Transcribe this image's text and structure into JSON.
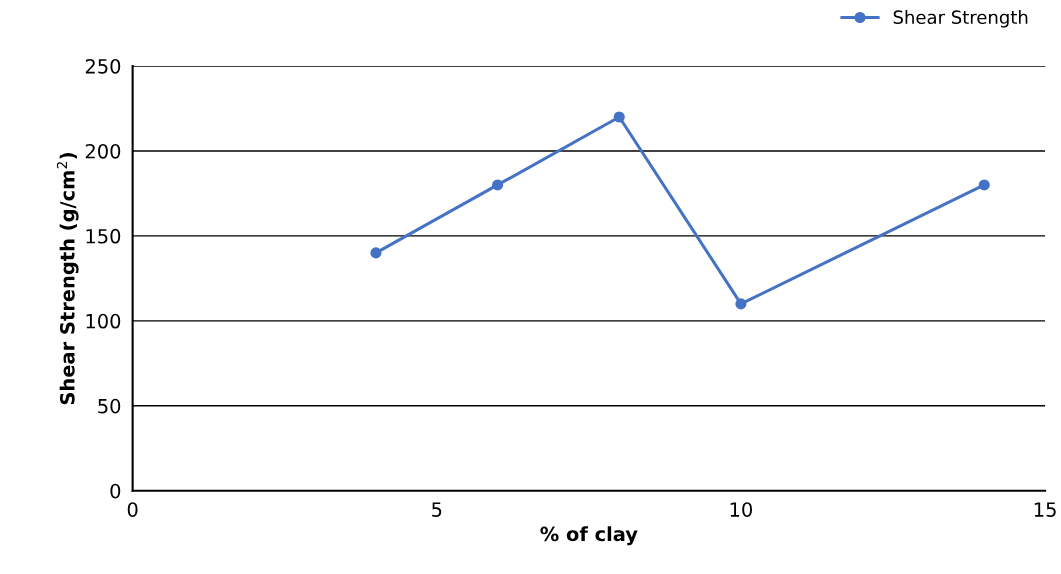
{
  "chart_data": {
    "type": "line",
    "xlabel": "% of clay",
    "ylabel": "Shear Strength (g/cm$^{2}$)",
    "x": [
      4,
      6,
      8,
      10,
      14
    ],
    "series": [
      {
        "name": "Shear Strength",
        "color": "#4472c4",
        "values": [
          140,
          180,
          220,
          110,
          180
        ]
      }
    ],
    "xlim": [
      0,
      15
    ],
    "xticks": [
      0,
      5,
      10,
      15
    ],
    "ylim": [
      0,
      250
    ],
    "yticks": [
      0,
      50,
      100,
      150,
      200,
      250
    ],
    "grid": "y",
    "legend": "top right",
    "marker": "circle",
    "line_style": "solid"
  }
}
